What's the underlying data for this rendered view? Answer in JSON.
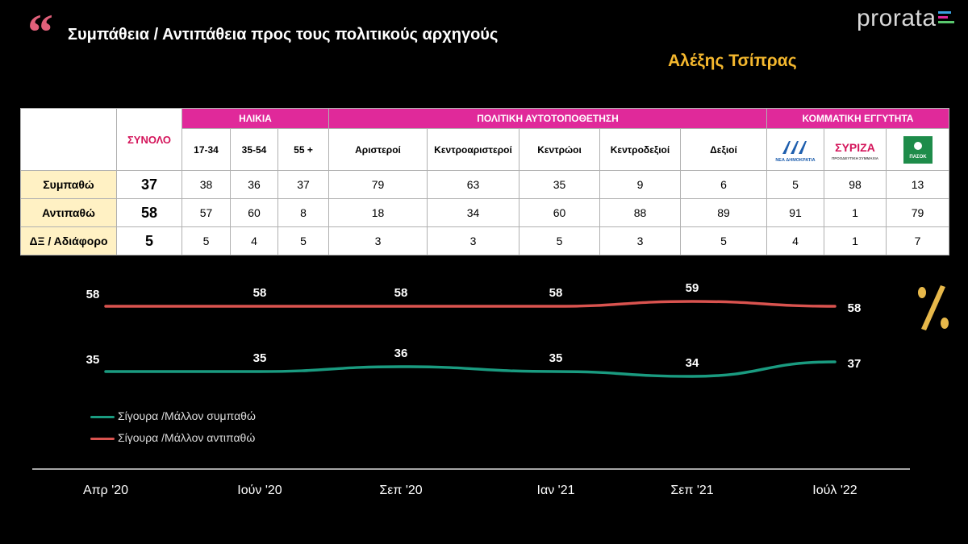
{
  "header": {
    "title": "Συμπάθεια / Αντιπάθεια προς τους πολιτικούς αρχηγούς",
    "logo_text": "prorata",
    "subject": "Αλέξης Τσίπρας"
  },
  "table": {
    "total_header": "ΣΥΝΟΛΟ",
    "groups": [
      {
        "label": "ΗΛΙΚΙΑ",
        "span": 3
      },
      {
        "label": "ΠΟΛΙΤΙΚΗ ΑΥΤΟΤΟΠΟΘΕΤΗΣΗ",
        "span": 5
      },
      {
        "label": "ΚΟΜΜΑΤΙΚΗ ΕΓΓΥΤΗΤΑ",
        "span": 3
      }
    ],
    "subheaders": [
      "17-34",
      "35-54",
      "55 +",
      "Αριστεροί",
      "Κεντροαριστεροί",
      "Κεντρώοι",
      "Κεντροδεξιοί",
      "Δεξιοί"
    ],
    "party_logos": [
      {
        "icon": "nea-dimokratia-logo",
        "caption": "ΝΕΑ ΔΗΜΟΚΡΑΤΙΑ",
        "color": "#1f5fae"
      },
      {
        "icon": "syriza-logo",
        "text": "ΣΥΡΙΖΑ",
        "caption": "ΠΡΟΟΔΕΥΤΙΚΗ ΣΥΜΜΑΧΙΑ",
        "color": "#d4145a"
      },
      {
        "icon": "pasok-logo",
        "text": "ΠΑΣΟΚ",
        "color": "#1e8c4a"
      }
    ],
    "rows": [
      {
        "label": "Συμπαθώ",
        "total": "37",
        "values": [
          "38",
          "36",
          "37",
          "79",
          "63",
          "35",
          "9",
          "6",
          "5",
          "98",
          "13"
        ]
      },
      {
        "label": "Αντιπαθώ",
        "total": "58",
        "values": [
          "57",
          "60",
          "8",
          "18",
          "34",
          "60",
          "88",
          "89",
          "91",
          "1",
          "79"
        ]
      },
      {
        "label": "ΔΞ / Αδιάφορο",
        "total": "5",
        "values": [
          "5",
          "4",
          "5",
          "3",
          "3",
          "5",
          "3",
          "5",
          "4",
          "1",
          "7"
        ]
      }
    ]
  },
  "percent_icon": "percent-icon",
  "chart_data": {
    "type": "line",
    "x": [
      "Απρ '20",
      "Ιούν '20",
      "Σεπ '20",
      "Ιαν '21",
      "Σεπ '21",
      "Ιούλ '22"
    ],
    "series": [
      {
        "name": "Σίγουρα /Μάλλον αντιπαθώ",
        "color": "#d9534f",
        "values": [
          58,
          58,
          58,
          58,
          59,
          58
        ]
      },
      {
        "name": "Σίγουρα /Μάλλον συμπαθώ",
        "color": "#1a9b80",
        "values": [
          35,
          35,
          36,
          35,
          34,
          37
        ]
      }
    ],
    "legend_position": "bottom-left",
    "grid": false
  }
}
